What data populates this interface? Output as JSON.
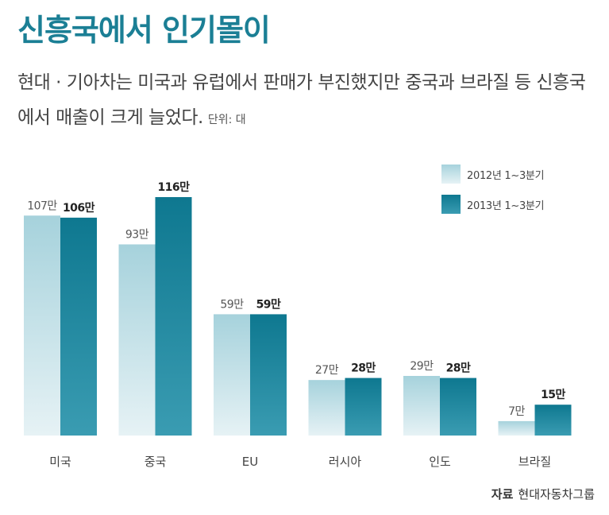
{
  "header": {
    "title": "신흥국에서 인기몰이",
    "subtitle": "현대 · 기아차는 미국과 유럽에서 판매가 부진했지만 중국과 브라질 등 신흥국에서 매출이 크게 늘었다.",
    "unit": "단위: 대"
  },
  "source": {
    "label": "자료",
    "text": "현대자동차그룹"
  },
  "colors": {
    "series_2012_top": "#a6d2dc",
    "series_2012_bottom": "#e6f2f5",
    "series_2013_top": "#0e7890",
    "series_2013_bottom": "#3a9cb2"
  },
  "chart_data": {
    "type": "bar",
    "categories": [
      "미국",
      "중국",
      "EU",
      "러시아",
      "인도",
      "브라질"
    ],
    "series": [
      {
        "name": "2012년 1~3분기",
        "values": [
          107,
          93,
          59,
          27,
          29,
          7
        ],
        "labels": [
          "107만",
          "93만",
          "59만",
          "27만",
          "29만",
          "7만"
        ]
      },
      {
        "name": "2013년 1~3분기",
        "values": [
          106,
          116,
          59,
          28,
          28,
          15
        ],
        "labels": [
          "106만",
          "116만",
          "59만",
          "28만",
          "28만",
          "15만"
        ]
      }
    ],
    "ylabel": "",
    "ylim": [
      0,
      116
    ],
    "grid": false,
    "legend_position": "top-right"
  }
}
